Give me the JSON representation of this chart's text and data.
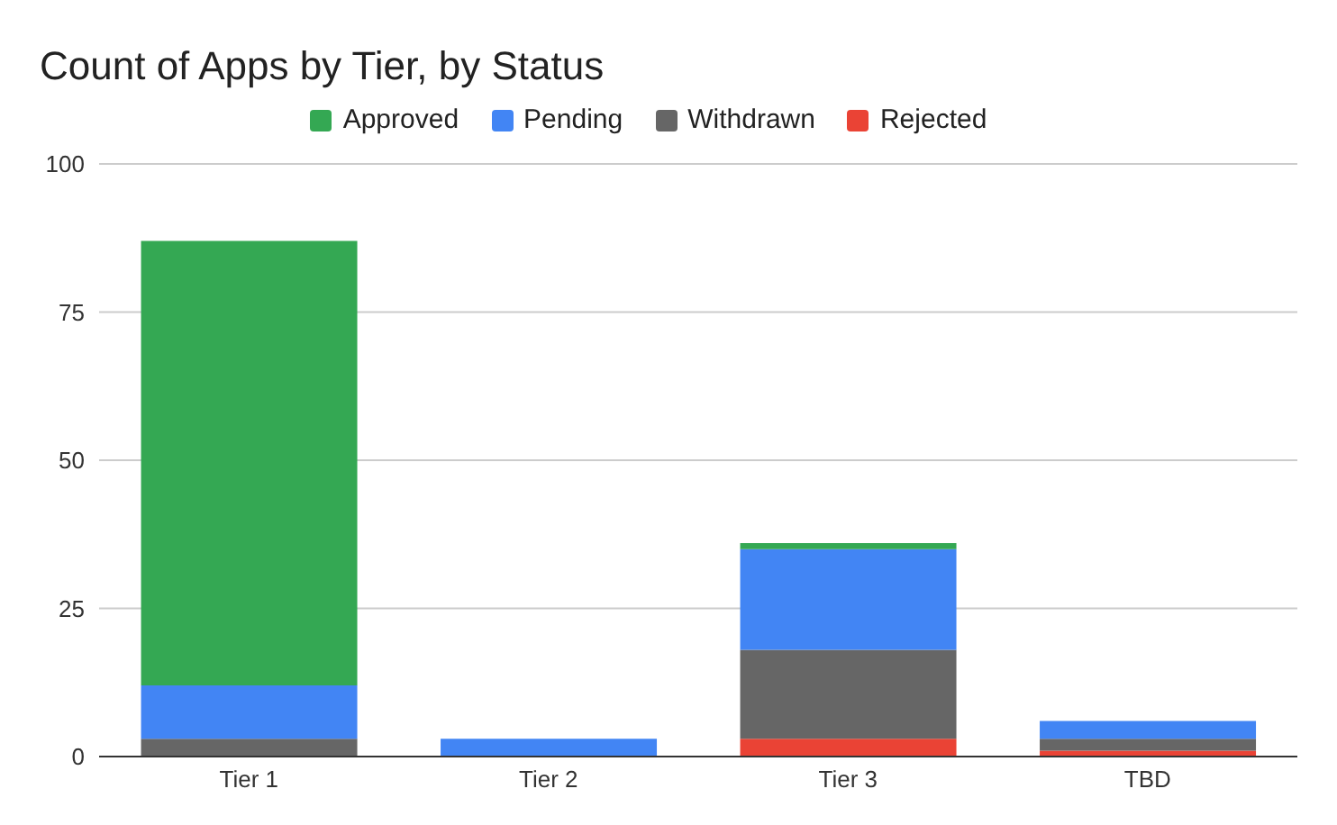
{
  "chart_data": {
    "type": "bar",
    "title": "Count of Apps by Tier, by Status",
    "categories": [
      "Tier 1",
      "Tier 2",
      "Tier 3",
      "TBD"
    ],
    "stacked": true,
    "series": [
      {
        "name": "Rejected",
        "color": "#ea4335",
        "values": [
          0,
          0,
          3,
          1
        ]
      },
      {
        "name": "Withdrawn",
        "color": "#666666",
        "values": [
          3,
          0,
          15,
          2
        ]
      },
      {
        "name": "Pending",
        "color": "#4285f4",
        "values": [
          9,
          3,
          17,
          3
        ]
      },
      {
        "name": "Approved",
        "color": "#34a853",
        "values": [
          75,
          0,
          1,
          0
        ]
      }
    ],
    "ylim": [
      0,
      100
    ],
    "yticks": [
      0,
      25,
      50,
      75,
      100
    ],
    "grid": "y",
    "legend": "top"
  }
}
